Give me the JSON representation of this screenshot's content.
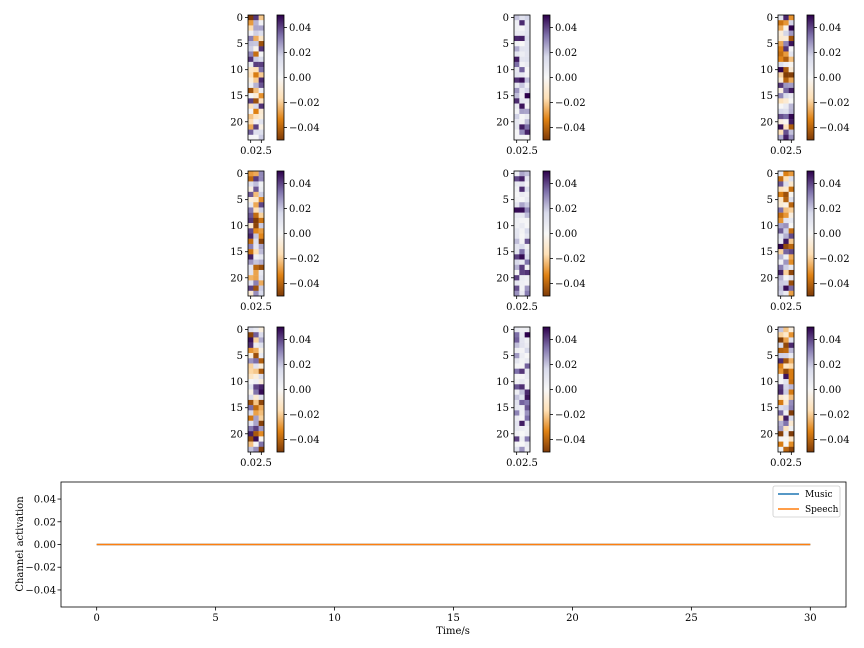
{
  "chart_data": [
    {
      "type": "heatmap",
      "grid": {
        "rows": 3,
        "cols": 3
      },
      "cells": {
        "rows": 24,
        "cols": 3
      },
      "y_ticks": [
        "0",
        "5",
        "10",
        "15",
        "20"
      ],
      "x_tick_label": "0.02.5",
      "colorbar": {
        "colormap": "PuOr",
        "range": [
          -0.05,
          0.05
        ],
        "ticks": [
          "0.04",
          "0.02",
          "0.00",
          "−0.02",
          "−0.04"
        ],
        "colors": [
          "#7f3b08",
          "#e08214",
          "#fee0b6",
          "#f7f7f7",
          "#d8daeb",
          "#8073ac",
          "#2d004b"
        ]
      }
    },
    {
      "type": "line",
      "xlabel": "Time/s",
      "ylabel": "Channel activation",
      "x_ticks": [
        "0",
        "5",
        "10",
        "15",
        "20",
        "25",
        "30"
      ],
      "y_ticks": [
        "0.04",
        "0.02",
        "0.00",
        "−0.02",
        "−0.04"
      ],
      "xlim": [
        -1.5,
        31.5
      ],
      "ylim": [
        -0.055,
        0.055
      ],
      "legend_position": "top-right",
      "series": [
        {
          "name": "Music",
          "color": "#1f77b4",
          "x": [
            0,
            30
          ],
          "y": [
            0.0,
            0.0
          ]
        },
        {
          "name": "Speech",
          "color": "#ff7f0e",
          "x": [
            0,
            30
          ],
          "y": [
            0.0,
            0.0
          ]
        }
      ]
    }
  ]
}
